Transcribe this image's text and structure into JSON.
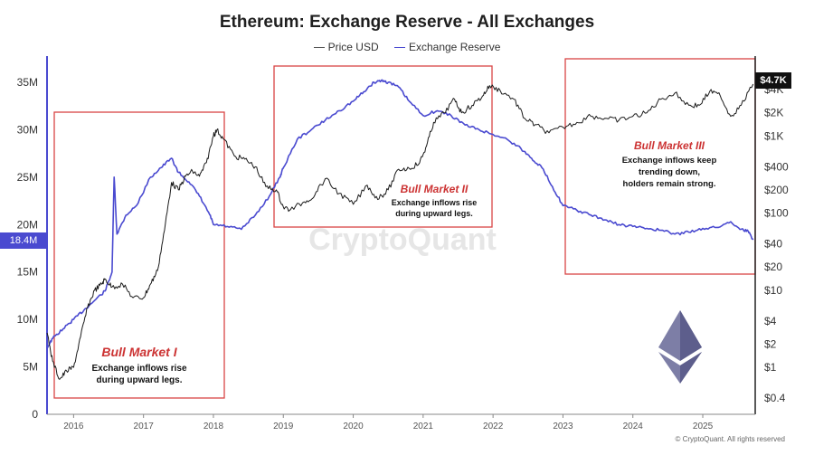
{
  "chart_data": {
    "type": "line",
    "title": "Ethereum: Exchange Reserve - All Exchanges",
    "legend": {
      "placement": "top-center",
      "entries": [
        "Price USD",
        "Exchange Reserve"
      ]
    },
    "colors": {
      "price": "#1a1a1a",
      "reserve": "#4a4ad0",
      "annotation_box": "#d94444",
      "annotation_title": "#cc3333"
    },
    "x_ticks": [
      "2016",
      "2017",
      "2018",
      "2019",
      "2020",
      "2021",
      "2022",
      "2023",
      "2024",
      "2025"
    ],
    "xlim": [
      2015.62,
      2025.75
    ],
    "left_axis": {
      "ylim": [
        0,
        37000000
      ],
      "ticks": [
        0,
        5000000,
        10000000,
        15000000,
        20000000,
        25000000,
        30000000,
        35000000
      ],
      "tick_labels": [
        "0",
        "5M",
        "10M",
        "15M",
        "20M",
        "25M",
        "30M",
        "35M"
      ]
    },
    "right_axis": {
      "scale": "log",
      "ticks": [
        0.4,
        1,
        2,
        4,
        10,
        20,
        40,
        100,
        200,
        400,
        1000,
        2000,
        4000
      ],
      "tick_labels": [
        "$0.4",
        "$1",
        "$2",
        "$4",
        "$10",
        "$20",
        "$40",
        "$100",
        "$200",
        "$400",
        "$1K",
        "$2K",
        "$4K"
      ]
    },
    "series": [
      {
        "name": "Exchange Reserve",
        "axis": "left",
        "x": [
          2015.62,
          2015.7,
          2015.85,
          2016.0,
          2016.15,
          2016.3,
          2016.45,
          2016.55,
          2016.58,
          2016.62,
          2016.75,
          2016.9,
          2017.1,
          2017.25,
          2017.4,
          2017.5,
          2017.65,
          2017.8,
          2017.95,
          2018.0,
          2018.2,
          2018.4,
          2018.6,
          2018.8,
          2018.95,
          2019.0,
          2019.2,
          2019.4,
          2019.6,
          2019.8,
          2020.0,
          2020.15,
          2020.3,
          2020.4,
          2020.5,
          2020.65,
          2020.8,
          2021.0,
          2021.2,
          2021.4,
          2021.6,
          2021.8,
          2022.0,
          2022.2,
          2022.4,
          2022.55,
          2022.7,
          2022.85,
          2023.0,
          2023.2,
          2023.4,
          2023.6,
          2023.8,
          2024.0,
          2024.2,
          2024.4,
          2024.6,
          2024.8,
          2025.0,
          2025.2,
          2025.4,
          2025.55,
          2025.65,
          2025.72
        ],
        "values": [
          7000000,
          8000000,
          9000000,
          10000000,
          11000000,
          12000000,
          13000000,
          15000000,
          25000000,
          19000000,
          21000000,
          22000000,
          25000000,
          26000000,
          27000000,
          25500000,
          24500000,
          23000000,
          21000000,
          20000000,
          19800000,
          19500000,
          21000000,
          23000000,
          25000000,
          26000000,
          29000000,
          30000000,
          31000000,
          32000000,
          33000000,
          34000000,
          35000000,
          35200000,
          35000000,
          34500000,
          33000000,
          31500000,
          32000000,
          31500000,
          30500000,
          30000000,
          29500000,
          29000000,
          28000000,
          27000000,
          26000000,
          24000000,
          22000000,
          21500000,
          21000000,
          20500000,
          20000000,
          19800000,
          19600000,
          19400000,
          19000000,
          19200000,
          19600000,
          19700000,
          20300000,
          19500000,
          19300000,
          18400000
        ]
      },
      {
        "name": "Price USD",
        "axis": "right",
        "x": [
          2015.62,
          2015.7,
          2015.8,
          2015.9,
          2016.0,
          2016.1,
          2016.2,
          2016.3,
          2016.4,
          2016.45,
          2016.55,
          2016.7,
          2016.85,
          2017.0,
          2017.1,
          2017.2,
          2017.3,
          2017.4,
          2017.5,
          2017.6,
          2017.7,
          2017.8,
          2017.9,
          2018.0,
          2018.05,
          2018.15,
          2018.3,
          2018.45,
          2018.6,
          2018.75,
          2018.9,
          2019.0,
          2019.1,
          2019.3,
          2019.45,
          2019.6,
          2019.8,
          2020.0,
          2020.2,
          2020.35,
          2020.5,
          2020.65,
          2020.8,
          2020.95,
          2021.05,
          2021.15,
          2021.3,
          2021.45,
          2021.55,
          2021.7,
          2021.85,
          2021.95,
          2022.1,
          2022.3,
          2022.45,
          2022.6,
          2022.8,
          2023.0,
          2023.2,
          2023.4,
          2023.6,
          2023.8,
          2024.0,
          2024.2,
          2024.4,
          2024.6,
          2024.8,
          2024.95,
          2025.1,
          2025.25,
          2025.4,
          2025.55,
          2025.72
        ],
        "values": [
          2.8,
          1.2,
          0.7,
          0.9,
          1.0,
          2.5,
          6,
          10,
          12,
          14,
          11,
          12,
          8,
          8,
          12,
          18,
          60,
          250,
          200,
          300,
          350,
          300,
          450,
          1000,
          1200,
          900,
          550,
          500,
          400,
          220,
          200,
          120,
          110,
          140,
          170,
          280,
          180,
          130,
          230,
          150,
          200,
          370,
          380,
          450,
          750,
          1500,
          2000,
          3000,
          2000,
          2500,
          3300,
          4500,
          3900,
          3000,
          1700,
          1400,
          1100,
          1300,
          1500,
          1800,
          1700,
          1600,
          1800,
          2000,
          3000,
          3600,
          2500,
          2500,
          3800,
          3300,
          1800,
          2500,
          4700
        ]
      }
    ],
    "current_values": {
      "reserve_label": "18.4M",
      "price_label": "$4.7K"
    },
    "annotations": [
      {
        "title": "Bull Market I",
        "text": [
          "Exchange inflows rise",
          "during upward legs."
        ]
      },
      {
        "title": "Bull Market II",
        "text": [
          "Exchange inflows rise",
          "during upward legs."
        ]
      },
      {
        "title": "Bull Market III",
        "text": [
          "Exchange inflows keep",
          "trending down,",
          "holders remain strong."
        ]
      }
    ],
    "watermark": "CryptoQuant",
    "footer": "© CryptoQuant. All rights reserved"
  }
}
